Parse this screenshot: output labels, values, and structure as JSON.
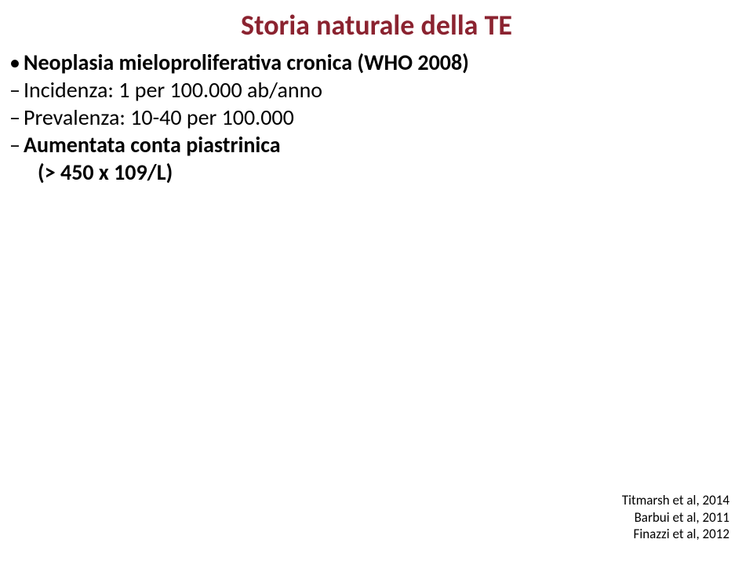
{
  "title": "Storia naturale della TE",
  "content": {
    "l1": "Neoplasia mieloproliferativa cronica (WHO 2008)",
    "l2a": "Incidenza: 1 per 100.000 ab/anno",
    "l2b": "Prevalenza: 10-40 per 100.000",
    "l2c": "Aumentata conta piastrinica",
    "l2c_sub": "(> 450 x 109/L)"
  },
  "citations": {
    "c1": "Titmarsh et al, 2014",
    "c2": "Barbui et al, 2011",
    "c3": "Finazzi et al, 2012"
  },
  "colors": {
    "title": "#8b2330",
    "text": "#000000",
    "background": "#ffffff"
  },
  "typography": {
    "title_fontsize": 36,
    "body_fontsize": 28,
    "citation_fontsize": 17
  }
}
